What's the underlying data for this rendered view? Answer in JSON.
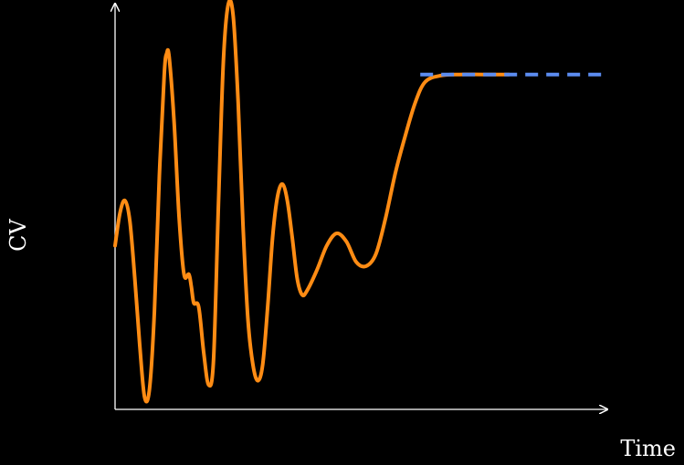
{
  "colors": {
    "background": "#000000",
    "axis": "#ffffff",
    "series": "#ff8c14",
    "target": "#5b8cf0"
  },
  "chart_data": {
    "type": "line",
    "title": "",
    "xlabel": "Time",
    "ylabel": "CV",
    "xlim": [
      0,
      100
    ],
    "ylim": [
      0,
      100
    ],
    "grid": false,
    "series": [
      {
        "style": "solid",
        "points": [
          [
            0,
            40
          ],
          [
            1,
            48
          ],
          [
            2,
            51
          ],
          [
            3,
            46
          ],
          [
            4,
            32
          ],
          [
            5,
            16
          ],
          [
            6,
            3
          ],
          [
            7,
            5
          ],
          [
            8,
            24
          ],
          [
            9,
            57
          ],
          [
            10,
            82
          ],
          [
            10.5,
            87
          ],
          [
            11,
            86
          ],
          [
            12,
            70
          ],
          [
            13,
            47
          ],
          [
            14,
            33
          ],
          [
            15,
            33
          ],
          [
            15.5,
            30
          ],
          [
            16,
            26
          ],
          [
            17,
            25
          ],
          [
            18,
            14
          ],
          [
            19,
            6
          ],
          [
            20,
            12
          ],
          [
            21,
            50
          ],
          [
            22,
            85
          ],
          [
            23,
            99
          ],
          [
            24,
            96
          ],
          [
            25,
            75
          ],
          [
            26,
            45
          ],
          [
            27,
            22
          ],
          [
            28,
            11
          ],
          [
            29,
            7
          ],
          [
            30,
            11
          ],
          [
            31,
            25
          ],
          [
            32,
            42
          ],
          [
            33,
            52
          ],
          [
            34,
            55
          ],
          [
            35,
            51
          ],
          [
            36,
            42
          ],
          [
            37,
            32
          ],
          [
            38,
            28
          ],
          [
            39,
            29
          ],
          [
            41,
            34
          ],
          [
            43,
            40
          ],
          [
            45,
            43
          ],
          [
            47,
            41
          ],
          [
            49,
            36
          ],
          [
            51,
            35
          ],
          [
            53,
            38
          ],
          [
            55,
            47
          ],
          [
            57,
            58
          ],
          [
            59,
            67
          ],
          [
            61,
            75
          ],
          [
            63,
            80
          ],
          [
            66,
            81.5
          ],
          [
            70,
            81.8
          ],
          [
            75,
            81.8
          ],
          [
            80,
            81.8
          ]
        ]
      },
      {
        "style": "dashed",
        "x": [
          62,
          100
        ],
        "y": [
          81.8,
          81.8
        ]
      }
    ]
  }
}
